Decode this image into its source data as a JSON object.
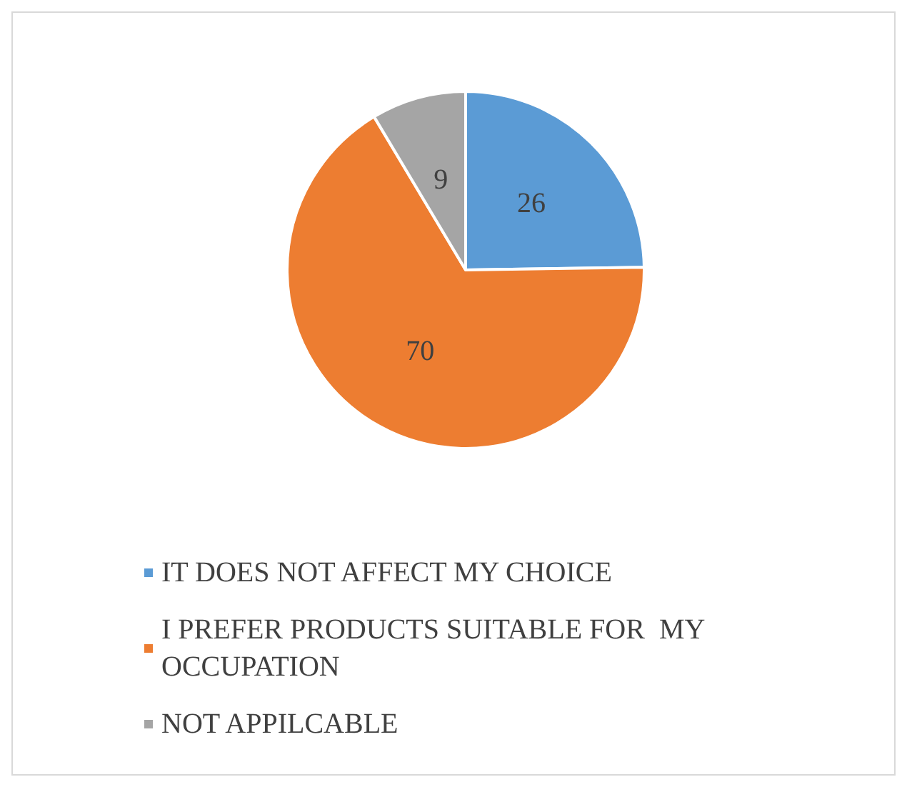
{
  "chart_data": {
    "type": "pie",
    "categories": [
      "IT DOES NOT AFFECT MY CHOICE",
      "I PREFER PRODUCTS SUITABLE FOR  MY OCCUPATION",
      "NOT APPILCABLE"
    ],
    "values": [
      26,
      70,
      9
    ],
    "colors": [
      "#5b9bd5",
      "#ed7d31",
      "#a5a5a5"
    ],
    "data_labels": true,
    "legend": "bottom"
  }
}
